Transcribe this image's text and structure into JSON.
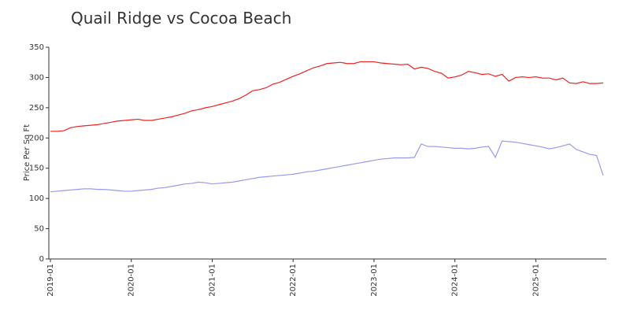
{
  "chart_data": {
    "type": "line",
    "title": "Quail Ridge vs Cocoa Beach",
    "y_label": "Price Per Sq Ft",
    "x": [
      "2019-01",
      "2019-02",
      "2019-03",
      "2019-04",
      "2019-05",
      "2019-06",
      "2019-07",
      "2019-08",
      "2019-09",
      "2019-10",
      "2019-11",
      "2019-12",
      "2020-01",
      "2020-02",
      "2020-03",
      "2020-04",
      "2020-05",
      "2020-06",
      "2020-07",
      "2020-08",
      "2020-09",
      "2020-10",
      "2020-11",
      "2020-12",
      "2021-01",
      "2021-02",
      "2021-03",
      "2021-04",
      "2021-05",
      "2021-06",
      "2021-07",
      "2021-08",
      "2021-09",
      "2021-10",
      "2021-11",
      "2021-12",
      "2022-01",
      "2022-02",
      "2022-03",
      "2022-04",
      "2022-05",
      "2022-06",
      "2022-07",
      "2022-08",
      "2022-09",
      "2022-10",
      "2022-11",
      "2022-12",
      "2023-01",
      "2023-02",
      "2023-03",
      "2023-04",
      "2023-05",
      "2023-06",
      "2023-07",
      "2023-08",
      "2023-09",
      "2023-10",
      "2023-11",
      "2023-12",
      "2024-01",
      "2024-02",
      "2024-03",
      "2024-04",
      "2024-05",
      "2024-06",
      "2024-07",
      "2024-08",
      "2024-09",
      "2024-10",
      "2024-11",
      "2024-12",
      "2025-01",
      "2025-02",
      "2025-03",
      "2025-04",
      "2025-05",
      "2025-06",
      "2025-07",
      "2025-08",
      "2025-09",
      "2025-10",
      "2025-11"
    ],
    "series": [
      {
        "color": "#ee2222",
        "values": [
          211,
          211,
          212,
          217,
          219,
          220,
          221,
          222,
          224,
          226,
          228,
          229,
          230,
          231,
          229,
          229,
          231,
          233,
          235,
          238,
          241,
          245,
          247,
          250,
          252,
          255,
          258,
          261,
          265,
          271,
          278,
          280,
          283,
          289,
          292,
          297,
          302,
          306,
          311,
          316,
          319,
          323,
          324,
          325,
          323,
          323,
          326,
          326,
          326,
          324,
          323,
          322,
          321,
          322,
          314,
          317,
          315,
          310,
          307,
          299,
          301,
          304,
          310,
          308,
          305,
          306,
          302,
          305,
          294,
          300,
          301,
          300,
          301,
          299,
          299,
          296,
          299,
          291,
          290,
          293,
          290,
          290,
          291
        ]
      },
      {
        "color": "#9999ee",
        "values": [
          111,
          112,
          113,
          114,
          115,
          116,
          116,
          115,
          115,
          114,
          113,
          112,
          112,
          113,
          114,
          115,
          117,
          118,
          120,
          122,
          124,
          125,
          127,
          126,
          124,
          125,
          126,
          127,
          129,
          131,
          133,
          135,
          136,
          137,
          138,
          139,
          140,
          142,
          144,
          145,
          147,
          149,
          151,
          153,
          155,
          157,
          159,
          161,
          163,
          165,
          166,
          167,
          167,
          167,
          168,
          190,
          186,
          186,
          185,
          184,
          183,
          183,
          182,
          183,
          185,
          186,
          168,
          195,
          194,
          193,
          191,
          189,
          187,
          185,
          182,
          184,
          187,
          190,
          181,
          177,
          173,
          171,
          138
        ]
      }
    ],
    "xticks": [
      "2019-01",
      "2020-01",
      "2021-01",
      "2022-01",
      "2023-01",
      "2024-01",
      "2025-01"
    ],
    "ylim": [
      0,
      350
    ],
    "yticks": [
      0,
      50,
      100,
      150,
      200,
      250,
      300,
      350
    ],
    "grid": false
  }
}
